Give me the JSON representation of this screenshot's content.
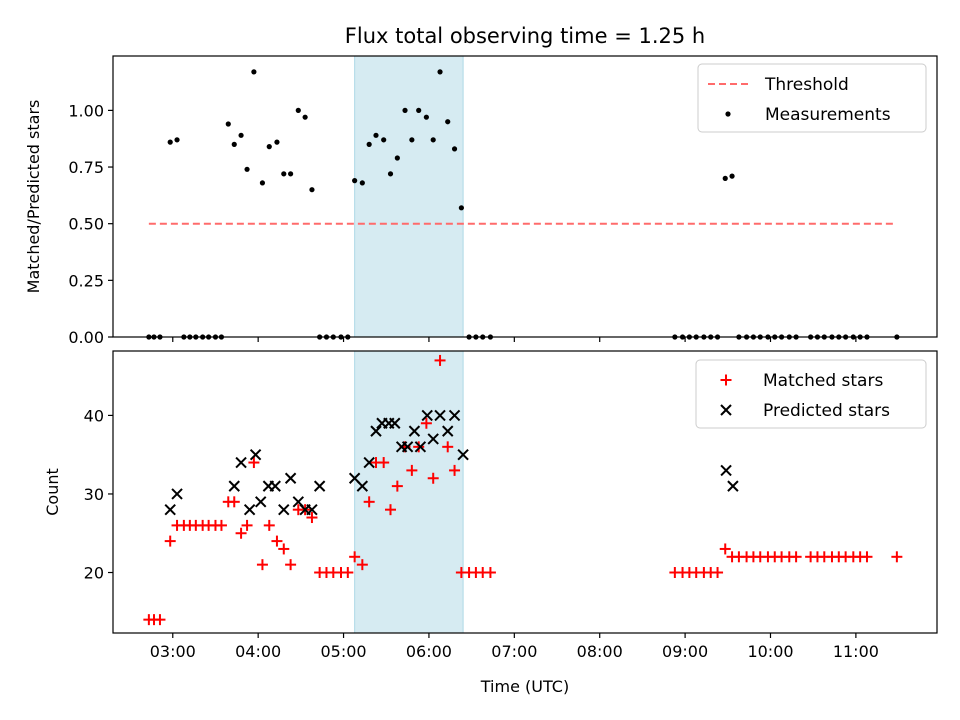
{
  "title": "Flux total observing time = 1.25 h",
  "colors": {
    "threshold": "#ff6b6b",
    "measurements": "#000000",
    "matched": "#ff0000",
    "predicted": "#000000",
    "span": "#add8e6"
  },
  "chart_data": [
    {
      "type": "scatter",
      "panel": "top",
      "ylabel": "Matched/Predicted stars",
      "xlim": [
        2.3,
        11.95
      ],
      "ylim": [
        0,
        1.24
      ],
      "yticks": [
        0,
        0.25,
        0.5,
        0.75,
        1.0
      ],
      "ytick_labels": [
        "0.00",
        "0.25",
        "0.50",
        "0.75",
        "1.00"
      ],
      "legend_position": "top-right",
      "span": [
        5.13,
        6.4
      ],
      "threshold": {
        "name": "Threshold",
        "y": 0.5,
        "x": [
          2.72,
          11.48
        ]
      },
      "series": [
        {
          "name": "Measurements",
          "x": [
            2.72,
            2.78,
            2.85,
            2.97,
            3.05,
            3.13,
            3.2,
            3.27,
            3.35,
            3.42,
            3.5,
            3.57,
            3.65,
            3.72,
            3.8,
            3.87,
            3.95,
            4.05,
            4.13,
            4.22,
            4.3,
            4.38,
            4.47,
            4.55,
            4.63,
            4.72,
            4.8,
            4.88,
            4.97,
            5.05,
            5.13,
            5.22,
            5.3,
            5.38,
            5.47,
            5.55,
            5.63,
            5.72,
            5.8,
            5.88,
            5.97,
            6.05,
            6.13,
            6.22,
            6.3,
            6.38,
            6.47,
            6.55,
            6.63,
            6.72,
            8.88,
            8.97,
            9.05,
            9.13,
            9.22,
            9.3,
            9.38,
            9.47,
            9.55,
            9.63,
            9.72,
            9.8,
            9.88,
            9.97,
            10.05,
            10.13,
            10.22,
            10.3,
            10.47,
            10.55,
            10.63,
            10.72,
            10.8,
            10.88,
            10.97,
            11.05,
            11.13,
            11.48
          ],
          "y": [
            0,
            0,
            0,
            0.86,
            0.87,
            0,
            0,
            0,
            0,
            0,
            0,
            0,
            0.94,
            0.85,
            0.89,
            0.74,
            1.17,
            0.68,
            0.84,
            0.86,
            0.72,
            0.72,
            1.0,
            0.97,
            0.65,
            0,
            0,
            0,
            0,
            0,
            0.69,
            0.68,
            0.85,
            0.89,
            0.87,
            0.72,
            0.79,
            1.0,
            0.87,
            1.0,
            0.97,
            0.87,
            1.17,
            0.95,
            0.83,
            0.57,
            0,
            0,
            0,
            0,
            0,
            0,
            0,
            0,
            0,
            0,
            0,
            0.7,
            0.71,
            0,
            0,
            0,
            0,
            0,
            0,
            0,
            0,
            0,
            0,
            0,
            0,
            0,
            0,
            0,
            0,
            0,
            0,
            0
          ]
        }
      ]
    },
    {
      "type": "scatter",
      "panel": "bottom",
      "ylabel": "Count",
      "xlabel": "Time (UTC)",
      "xlim": [
        2.3,
        11.95
      ],
      "ylim": [
        12.3,
        48.2
      ],
      "yticks": [
        20,
        30,
        40
      ],
      "ytick_labels": [
        "20",
        "30",
        "40"
      ],
      "xticks": [
        3,
        4,
        5,
        6,
        7,
        8,
        9,
        10,
        11
      ],
      "xtick_labels": [
        "03:00",
        "04:00",
        "05:00",
        "06:00",
        "07:00",
        "08:00",
        "09:00",
        "10:00",
        "11:00"
      ],
      "legend_position": "top-right",
      "span": [
        5.13,
        6.4
      ],
      "series": [
        {
          "name": "Matched stars",
          "marker": "plus",
          "x": [
            2.72,
            2.78,
            2.85,
            2.97,
            3.05,
            3.13,
            3.2,
            3.27,
            3.35,
            3.42,
            3.5,
            3.57,
            3.65,
            3.72,
            3.8,
            3.87,
            3.95,
            4.05,
            4.13,
            4.22,
            4.3,
            4.38,
            4.47,
            4.55,
            4.63,
            4.72,
            4.8,
            4.88,
            4.97,
            5.05,
            5.13,
            5.22,
            5.3,
            5.38,
            5.47,
            5.55,
            5.63,
            5.72,
            5.8,
            5.88,
            5.97,
            6.05,
            6.13,
            6.22,
            6.3,
            6.38,
            6.47,
            6.55,
            6.63,
            6.72,
            8.88,
            8.97,
            9.05,
            9.13,
            9.22,
            9.3,
            9.38,
            9.47,
            9.55,
            9.63,
            9.72,
            9.8,
            9.88,
            9.97,
            10.05,
            10.13,
            10.22,
            10.3,
            10.47,
            10.55,
            10.63,
            10.72,
            10.8,
            10.88,
            10.97,
            11.05,
            11.13,
            11.48
          ],
          "y": [
            14,
            14,
            14,
            24,
            26,
            26,
            26,
            26,
            26,
            26,
            26,
            26,
            29,
            29,
            25,
            26,
            34,
            21,
            26,
            24,
            23,
            21,
            28,
            28,
            27,
            20,
            20,
            20,
            20,
            20,
            22,
            21,
            29,
            34,
            34,
            28,
            31,
            36,
            33,
            36,
            39,
            32,
            47,
            36,
            33,
            20,
            20,
            20,
            20,
            20,
            20,
            20,
            20,
            20,
            20,
            20,
            20,
            23,
            22,
            22,
            22,
            22,
            22,
            22,
            22,
            22,
            22,
            22,
            22,
            22,
            22,
            22,
            22,
            22,
            22,
            22,
            22,
            22
          ]
        },
        {
          "name": "Predicted stars",
          "marker": "x",
          "x": [
            2.97,
            3.05,
            3.72,
            3.8,
            3.9,
            3.97,
            4.03,
            4.12,
            4.2,
            4.3,
            4.38,
            4.47,
            4.55,
            4.63,
            4.72,
            5.13,
            5.22,
            5.3,
            5.38,
            5.45,
            5.53,
            5.6,
            5.68,
            5.75,
            5.83,
            5.9,
            5.98,
            6.05,
            6.13,
            6.22,
            6.3,
            6.4,
            9.48,
            9.56
          ],
          "y": [
            28,
            30,
            31,
            34,
            28,
            35,
            29,
            31,
            31,
            28,
            32,
            29,
            28,
            28,
            31,
            32,
            31,
            34,
            38,
            39,
            39,
            39,
            36,
            36,
            38,
            36,
            40,
            37,
            40,
            38,
            40,
            35,
            33,
            31
          ]
        }
      ]
    }
  ]
}
